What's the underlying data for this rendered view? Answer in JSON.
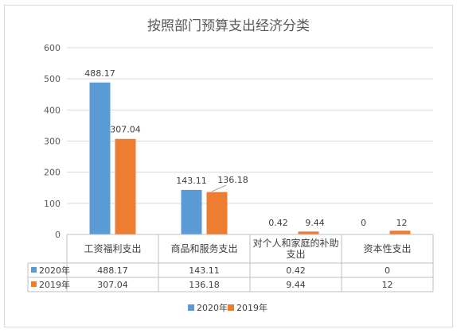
{
  "chart_data": {
    "type": "bar",
    "title": "按照部门预算支出经济分类",
    "categories": [
      "工资福利支出",
      "商品和服务支出",
      "对个人和家庭的补助支出",
      "资本性支出"
    ],
    "category_lines": [
      [
        "工资福利支出"
      ],
      [
        "商品和服务支出"
      ],
      [
        "对个人和家庭的补助",
        "支出"
      ],
      [
        "资本性支出"
      ]
    ],
    "series": [
      {
        "name": "2020年",
        "color": "#5B9BD5",
        "values": [
          488.17,
          143.11,
          0.42,
          0
        ],
        "labels": [
          "488.17",
          "143.11",
          "0.42",
          "0"
        ]
      },
      {
        "name": "2019年",
        "color": "#ED7D31",
        "values": [
          307.04,
          136.18,
          9.44,
          12
        ],
        "labels": [
          "307.04",
          "136.18",
          "9.44",
          "12"
        ]
      }
    ],
    "ylim": [
      0,
      600
    ],
    "yticks": [
      "0",
      "100",
      "200",
      "300",
      "400",
      "500",
      "600"
    ],
    "grid": true,
    "legend_position": "bottom",
    "data_table": true
  }
}
